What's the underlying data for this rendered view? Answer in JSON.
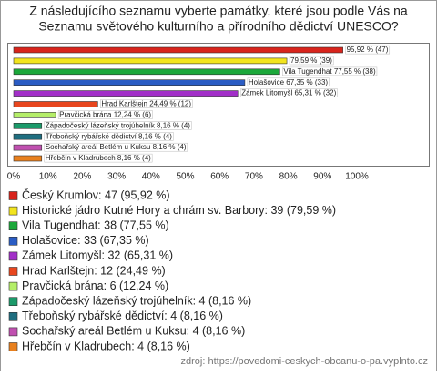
{
  "chart_data": {
    "type": "bar",
    "title": [
      "Z následujícího seznamu vyberte památky, které jsou podle Vás na",
      "Seznamu světového kulturního a přírodního dědictví UNESCO?"
    ],
    "categories": [
      "Český Krumlov",
      "Historické jádro Kutné Hory a chrám sv. Barbory",
      "Vila Tugendhat",
      "Holašovice",
      "Zámek Litomyšl",
      "Hrad Karlštejn",
      "Pravčická brána",
      "Západočeský lázeňský trojúhelník",
      "Třeboňský rybářské dědictví",
      "Sochařský areál Betlém u Kuksu",
      "Hřebčín v Kladrubech"
    ],
    "values": [
      95.92,
      79.59,
      77.55,
      67.35,
      65.31,
      24.49,
      12.24,
      8.16,
      8.16,
      8.16,
      8.16
    ],
    "value_labels": [
      "95,92 % (47)",
      "79,59 % (39)",
      "Vila Tugendhat 77,55 % (38)",
      "Holašovice 67,35 % (33)",
      "Zámek Litomyšl 65,31 % (32)",
      "Hrad Karlštejn 24,49 % (12)",
      "Pravčická brána 12,24 % (6)",
      "Západočeský lázeňský trojúhelník 8,16 % (4)",
      "Třeboňský rybářské dědictví 8,16 % (4)",
      "Sochařský areál Betlém u Kuksu 8,16 % (4)",
      "Hřebčín v Kladrubech 8,16 % (4)"
    ],
    "colors": [
      "#d8241c",
      "#f2e41e",
      "#1ba83a",
      "#2a5cc4",
      "#a22fc8",
      "#e8461e",
      "#b4ee68",
      "#1b9a6a",
      "#1f6e80",
      "#c050b0",
      "#e8801e"
    ],
    "legend": [
      "Český Krumlov: 47 (95,92 %)",
      "Historické jádro Kutné Hory a chrám sv. Barbory: 39 (79,59 %)",
      "Vila Tugendhat: 38 (77,55 %)",
      "Holašovice: 33 (67,35 %)",
      "Zámek Litomyšl: 32 (65,31 %)",
      "Hrad Karlštejn: 12 (24,49 %)",
      "Pravčická brána: 6 (12,24 %)",
      "Západočeský lázeňský trojúhelník: 4 (8,16 %)",
      "Třeboňský rybářské dědictví: 4 (8,16 %)",
      "Sochařský areál Betlém u Kuksu: 4 (8,16 %)",
      "Hřebčín v Kladrubech: 4 (8,16 %)"
    ],
    "xlim": [
      0,
      100
    ],
    "xticks": [
      {
        "value": 0,
        "label": "0%"
      },
      {
        "value": 10,
        "label": "10%"
      },
      {
        "value": 20,
        "label": "20%"
      },
      {
        "value": 30,
        "label": "30%"
      },
      {
        "value": 40,
        "label": "40%"
      },
      {
        "value": 50,
        "label": "50%"
      },
      {
        "value": 60,
        "label": "60%"
      },
      {
        "value": 70,
        "label": "70%"
      },
      {
        "value": 80,
        "label": "80%"
      },
      {
        "value": 90,
        "label": "90%"
      },
      {
        "value": 100,
        "label": "100%"
      }
    ],
    "source": "zdroj: https://povedomi-ceskych-obcanu-o-pa.vyplnto.cz"
  }
}
